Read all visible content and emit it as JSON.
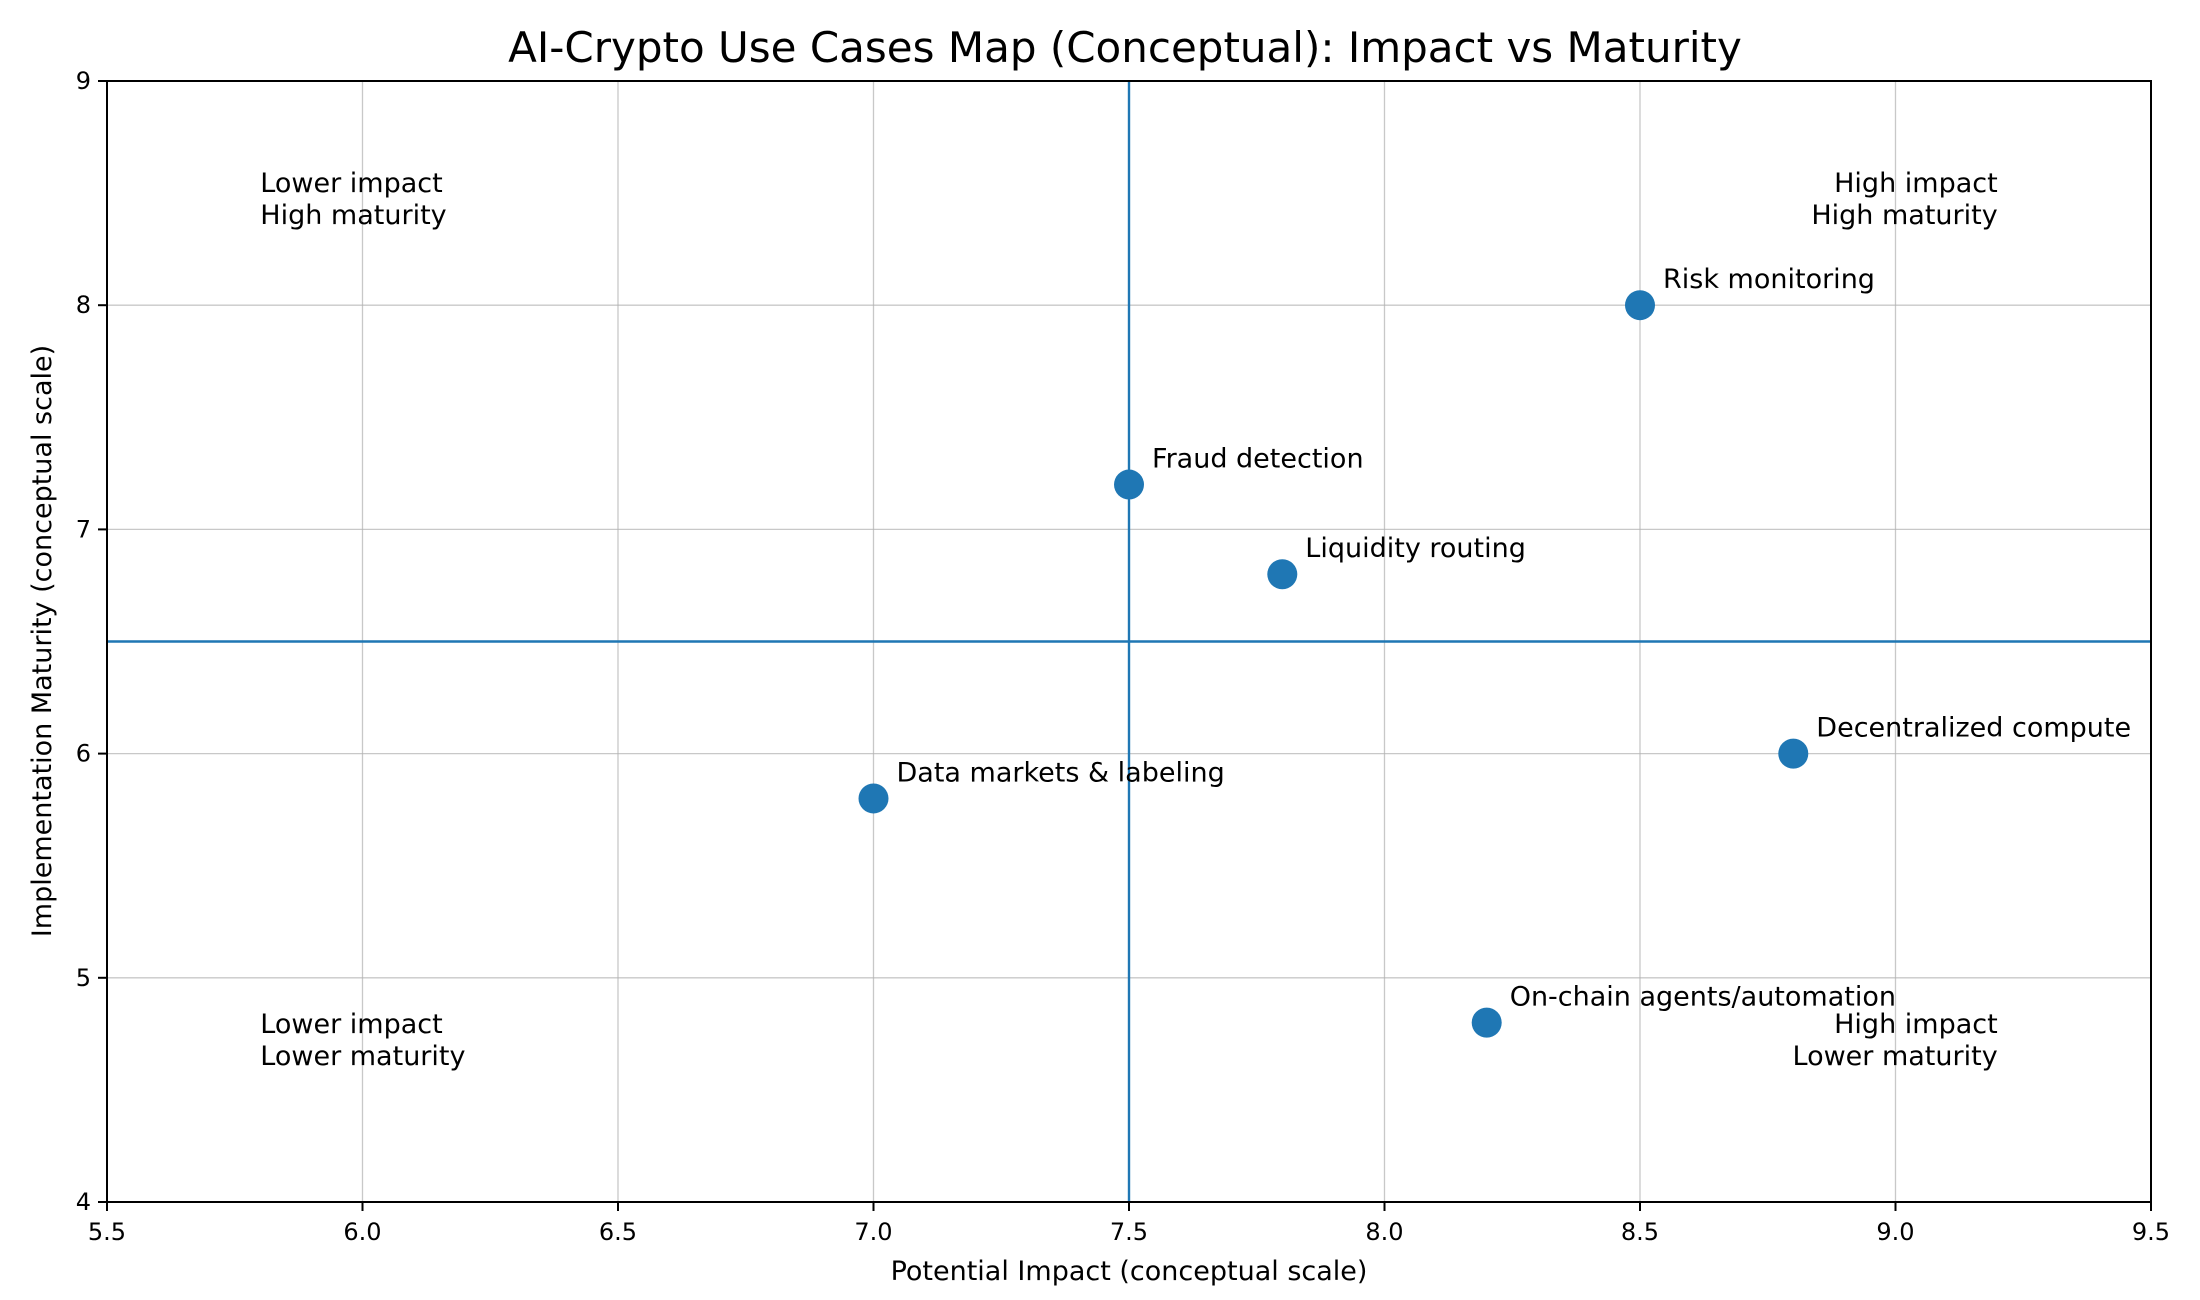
{
  "chart_data": {
    "type": "scatter",
    "title": "AI-Crypto Use Cases Map (Conceptual): Impact vs Maturity",
    "xlabel": "Potential Impact (conceptual scale)",
    "ylabel": "Implementation Maturity (conceptual scale)",
    "xlim": [
      5.5,
      9.5
    ],
    "ylim": [
      4,
      9
    ],
    "xticks": [
      5.5,
      6.0,
      6.5,
      7.0,
      7.5,
      8.0,
      8.5,
      9.0,
      9.5
    ],
    "xtick_labels": [
      "5.5",
      "6.0",
      "6.5",
      "7.0",
      "7.5",
      "8.0",
      "8.5",
      "9.0",
      "9.5"
    ],
    "yticks": [
      4,
      5,
      6,
      7,
      8,
      9
    ],
    "ytick_labels": [
      "4",
      "5",
      "6",
      "7",
      "8",
      "9"
    ],
    "grid": true,
    "point_color": "#1f77b4",
    "reference_lines": {
      "x": 7.5,
      "y": 6.5,
      "color": "#1f77b4"
    },
    "points": [
      {
        "label": "Risk monitoring",
        "x": 8.5,
        "y": 8.0
      },
      {
        "label": "Fraud detection",
        "x": 7.5,
        "y": 7.2
      },
      {
        "label": "Liquidity routing",
        "x": 7.8,
        "y": 6.8
      },
      {
        "label": "Decentralized compute",
        "x": 8.8,
        "y": 6.0
      },
      {
        "label": "Data markets & labeling",
        "x": 7.0,
        "y": 5.8
      },
      {
        "label": "On-chain agents/automation",
        "x": 8.2,
        "y": 4.8
      }
    ],
    "quadrant_labels": [
      {
        "lines": [
          "Lower impact",
          "High maturity"
        ],
        "x": 5.8,
        "y": 8.5,
        "align": "left"
      },
      {
        "lines": [
          "High impact",
          "High maturity"
        ],
        "x": 9.2,
        "y": 8.5,
        "align": "right"
      },
      {
        "lines": [
          "Lower impact",
          "Lower maturity"
        ],
        "x": 5.8,
        "y": 4.75,
        "align": "left"
      },
      {
        "lines": [
          "High impact",
          "Lower maturity"
        ],
        "x": 9.2,
        "y": 4.75,
        "align": "right"
      }
    ]
  }
}
